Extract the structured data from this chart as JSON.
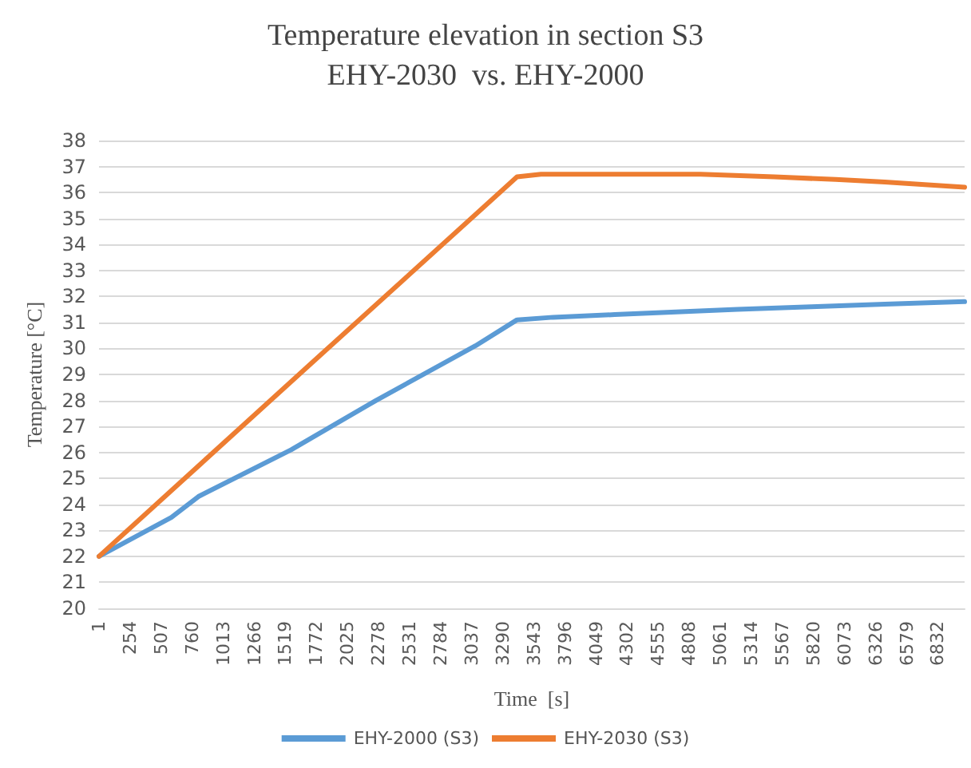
{
  "chart_data": {
    "type": "line",
    "title": "Temperature elevation in section S3",
    "subtitle": "EHY-2030  vs. EHY-2000",
    "xlabel": "Time  [s]",
    "ylabel": "Temperature [°C]",
    "series": [
      {
        "name": "EHY-2000 (S3)",
        "color": "#5b9bd5",
        "x": [
          1,
          590,
          810,
          1566,
          2257,
          3066,
          3405,
          3700,
          4200,
          4700,
          5200,
          5800,
          6400,
          7050
        ],
        "values": [
          22,
          23.5,
          24.3,
          26.1,
          28,
          30.1,
          31.1,
          31.2,
          31.3,
          31.4,
          31.5,
          31.6,
          31.7,
          31.8
        ]
      },
      {
        "name": "EHY-2030 (S3)",
        "color": "#ed7d31",
        "x": [
          1,
          1700,
          3405,
          3600,
          4900,
          5500,
          6000,
          6400,
          7050
        ],
        "values": [
          22,
          29.3,
          36.6,
          36.7,
          36.7,
          36.6,
          36.5,
          36.4,
          36.2
        ]
      }
    ],
    "xlim": [
      1,
      7050
    ],
    "xticks": [
      1,
      254,
      507,
      760,
      1013,
      1266,
      1519,
      1772,
      2025,
      2278,
      2531,
      2784,
      3037,
      3290,
      3543,
      3796,
      4049,
      4302,
      4555,
      4808,
      5061,
      5314,
      5567,
      5820,
      6073,
      6326,
      6579,
      6832
    ],
    "ylim": [
      20,
      38
    ],
    "yticks": [
      20,
      21,
      22,
      23,
      24,
      25,
      26,
      27,
      28,
      29,
      30,
      31,
      32,
      33,
      34,
      35,
      36,
      37,
      38
    ],
    "grid": "y",
    "legend": "bottom",
    "marker": "none",
    "line_style": "solid"
  }
}
